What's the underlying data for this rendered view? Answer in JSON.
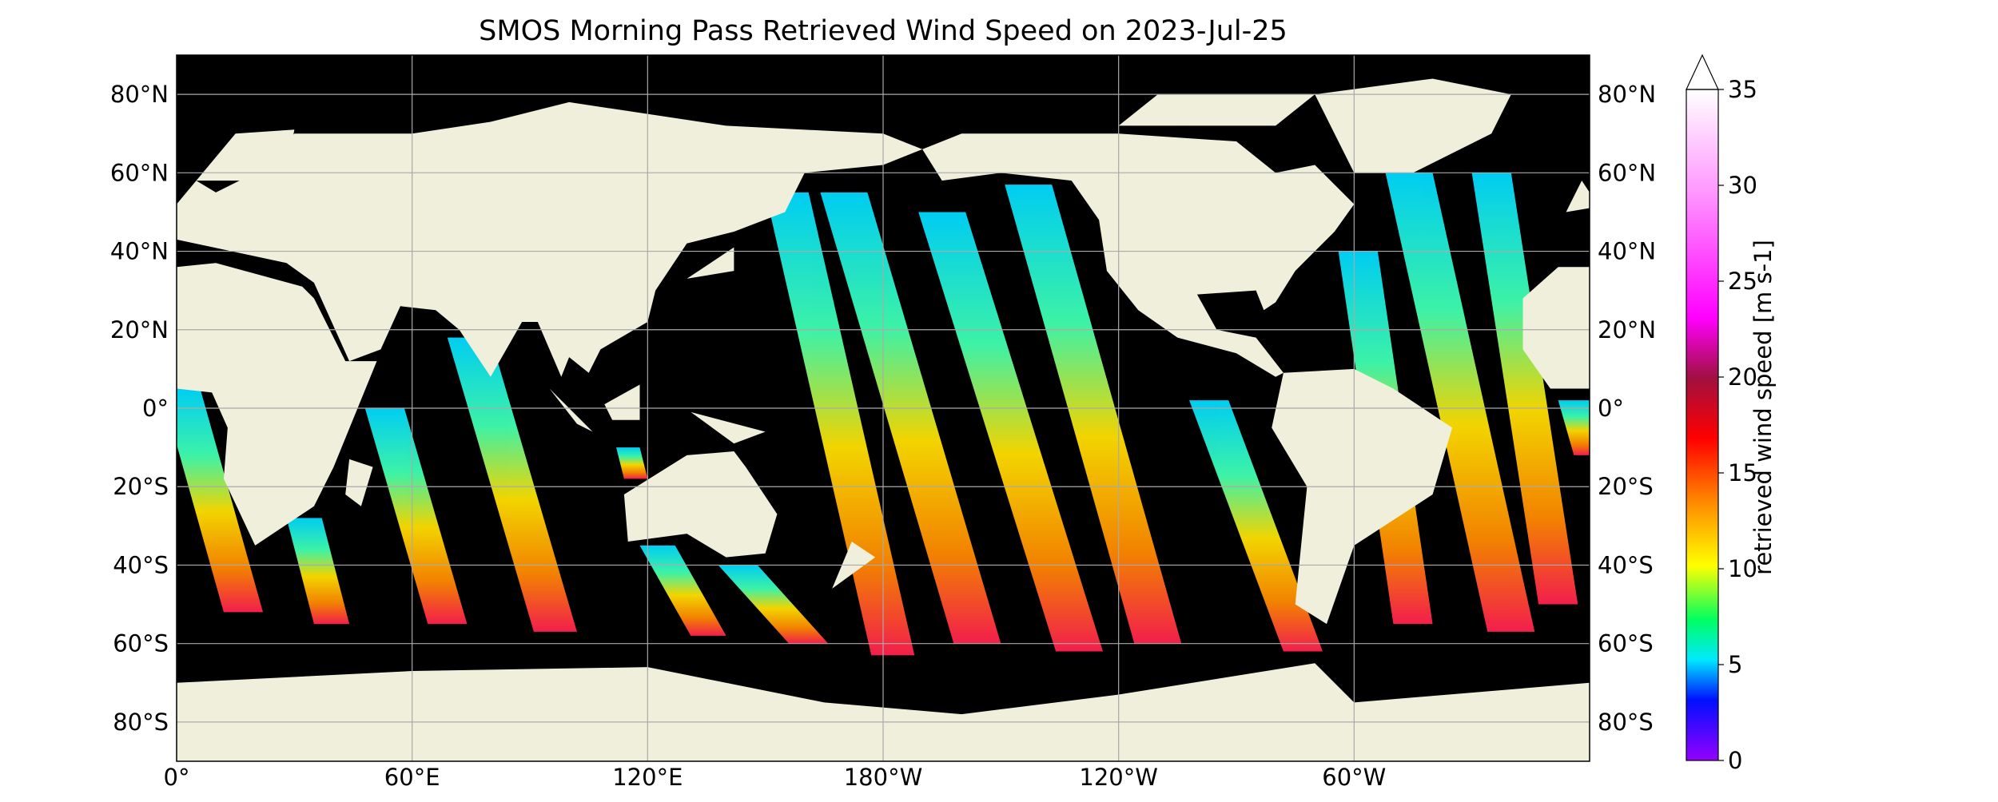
{
  "map": {
    "title": "SMOS Morning Pass Retrieved Wind Speed on 2023-Jul-25",
    "lon_ticks": [
      {
        "value": 0,
        "label": "0°"
      },
      {
        "value": 60,
        "label": "60°E"
      },
      {
        "value": 120,
        "label": "120°E"
      },
      {
        "value": -180,
        "label": "180°W"
      },
      {
        "value": -120,
        "label": "120°W"
      },
      {
        "value": -60,
        "label": "60°W"
      }
    ],
    "lat_ticks": [
      {
        "value": 80,
        "label": "80°N"
      },
      {
        "value": 60,
        "label": "60°N"
      },
      {
        "value": 40,
        "label": "40°N"
      },
      {
        "value": 20,
        "label": "20°N"
      },
      {
        "value": 0,
        "label": "0°"
      },
      {
        "value": -20,
        "label": "20°S"
      },
      {
        "value": -40,
        "label": "40°S"
      },
      {
        "value": -60,
        "label": "60°S"
      },
      {
        "value": -80,
        "label": "80°S"
      }
    ],
    "grid": true,
    "colorbar": {
      "label": "retrieved wind speed [m s-1]",
      "lim": [
        0,
        35
      ],
      "ticks": [
        0,
        5,
        10,
        15,
        20,
        25,
        30,
        35
      ],
      "extend": "max"
    }
  }
}
